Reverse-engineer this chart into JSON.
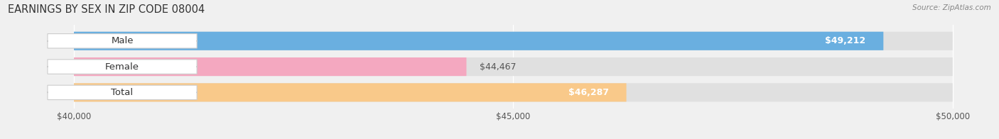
{
  "title": "EARNINGS BY SEX IN ZIP CODE 08004",
  "source": "Source: ZipAtlas.com",
  "categories": [
    "Male",
    "Female",
    "Total"
  ],
  "values": [
    49212,
    44467,
    46287
  ],
  "bar_colors": [
    "#6aafe0",
    "#f4a8c0",
    "#f9c98a"
  ],
  "label_inside": [
    true,
    false,
    true
  ],
  "value_label_colors_inside": [
    "white",
    "#666666",
    "white"
  ],
  "xlim": [
    40000,
    50000
  ],
  "xticks": [
    40000,
    45000,
    50000
  ],
  "xtick_labels": [
    "$40,000",
    "$45,000",
    "$50,000"
  ],
  "bar_height": 0.72,
  "background_color": "#f0f0f0",
  "bar_bg_color": "#e0e0e0",
  "title_fontsize": 10.5,
  "label_fontsize": 9.5,
  "value_fontsize": 9,
  "axis_fontsize": 8.5
}
